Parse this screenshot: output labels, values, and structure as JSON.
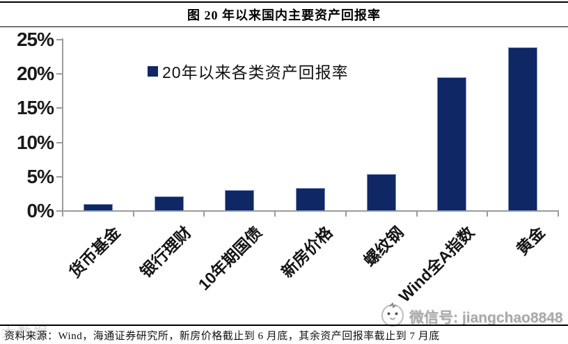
{
  "header": {
    "title": "图 20 年以来国内主要资产回报率"
  },
  "legend": {
    "label": "20年以来各类资产回报率",
    "swatch_color": "#0F2765"
  },
  "chart_data": {
    "type": "bar",
    "title": "图 20 年以来国内主要资产回报率",
    "legend": [
      "20年以来各类资产回报率"
    ],
    "legend_position": "top-center-inside",
    "categories": [
      "货币基金",
      "银行理财",
      "10年期国债",
      "新房价格",
      "螺纹钢",
      "Wind全A指数",
      "黄金"
    ],
    "values": [
      1.0,
      2.1,
      3.0,
      3.4,
      5.4,
      19.5,
      23.9
    ],
    "unit": "%",
    "xlabel": "",
    "ylabel": "",
    "ylim": [
      0,
      25
    ],
    "ytick_step": 5,
    "ytick_labels": [
      "0%",
      "5%",
      "10%",
      "15%",
      "20%",
      "25%"
    ],
    "grid": false,
    "bar_color": "#0F2765",
    "bar_border_color": "#7C91B9",
    "axis_color": "#9B9B9B"
  },
  "footer": {
    "source": "资料来源：Wind，海通证券研究所，新房价格截止到 6 月底，其余资产回报率截止到 7 月底",
    "wechat": "微信号: jiangchao8848",
    "watermark": "大数据"
  }
}
